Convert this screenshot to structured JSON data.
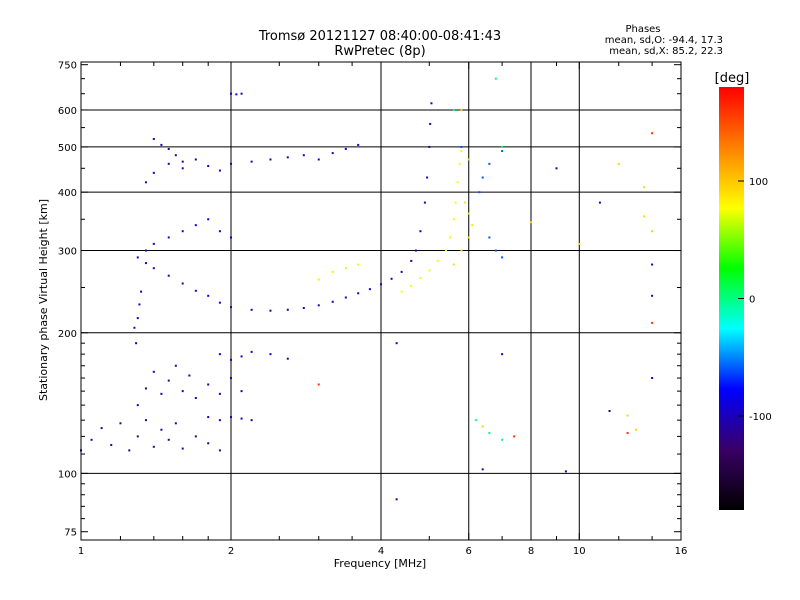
{
  "chart_data": {
    "type": "scatter",
    "title": "Tromsø 20121127 08:40:00-08:41:43",
    "subtitle": "RwPretec (8p)",
    "xlabel": "Frequency [MHz]",
    "ylabel": "Stationary phase Virtual Height [km]",
    "x_scale": "log",
    "y_scale": "log",
    "xlim": [
      1,
      16
    ],
    "ylim": [
      72,
      760
    ],
    "x_ticks": [
      1,
      2,
      4,
      6,
      8,
      10,
      16
    ],
    "x_tick_labels": [
      "1",
      "2",
      "4",
      "6",
      "8",
      "10",
      "16"
    ],
    "x_gridlines": [
      2,
      4,
      6,
      8,
      10
    ],
    "y_ticks": [
      75,
      100,
      200,
      300,
      400,
      500,
      600,
      750
    ],
    "y_tick_labels": [
      "75",
      "100",
      "200",
      "300",
      "400",
      "500",
      "600",
      "750"
    ],
    "y_gridlines": [
      100,
      200,
      300,
      400,
      500,
      600
    ],
    "grid": true,
    "legend": {
      "title": "Phases",
      "lines": [
        "mean, sd,O: -94.4, 17.3",
        "mean, sd,X:  85.2, 22.3"
      ],
      "placement": "top-right"
    },
    "colorbar": {
      "label": "[deg]",
      "range": [
        -180,
        180
      ],
      "ticks": [
        100,
        0,
        -100
      ],
      "tick_labels": [
        "100",
        "0",
        "-100"
      ],
      "stops": [
        "#000000",
        "#3a0066",
        "#0000ff",
        "#00ffff",
        "#00ff00",
        "#ffff00",
        "#ff8000",
        "#ff0000"
      ]
    },
    "traces": [
      {
        "phase": -110,
        "points": [
          [
            1.0,
            112
          ],
          [
            1.05,
            118
          ],
          [
            1.1,
            125
          ],
          [
            1.15,
            115
          ],
          [
            1.2,
            128
          ],
          [
            1.25,
            112
          ],
          [
            1.3,
            120
          ],
          [
            1.35,
            130
          ],
          [
            1.4,
            114
          ],
          [
            1.45,
            124
          ],
          [
            1.5,
            118
          ],
          [
            1.55,
            128
          ],
          [
            1.6,
            113
          ],
          [
            1.7,
            120
          ],
          [
            1.8,
            116
          ],
          [
            1.9,
            112
          ]
        ]
      },
      {
        "phase": -105,
        "points": [
          [
            1.3,
            140
          ],
          [
            1.35,
            152
          ],
          [
            1.4,
            165
          ],
          [
            1.45,
            148
          ],
          [
            1.5,
            158
          ],
          [
            1.55,
            170
          ],
          [
            1.6,
            150
          ],
          [
            1.65,
            162
          ],
          [
            1.7,
            145
          ],
          [
            1.8,
            155
          ],
          [
            1.9,
            148
          ],
          [
            2.0,
            160
          ],
          [
            2.1,
            150
          ]
        ]
      },
      {
        "phase": -100,
        "points": [
          [
            1.28,
            205
          ],
          [
            1.29,
            190
          ],
          [
            1.3,
            215
          ],
          [
            1.31,
            230
          ],
          [
            1.32,
            245
          ]
        ]
      },
      {
        "phase": -100,
        "points": [
          [
            1.3,
            290
          ],
          [
            1.35,
            282
          ],
          [
            1.4,
            275
          ],
          [
            1.5,
            265
          ],
          [
            1.6,
            255
          ],
          [
            1.7,
            246
          ],
          [
            1.8,
            240
          ],
          [
            1.9,
            232
          ],
          [
            2.0,
            227
          ],
          [
            2.2,
            224
          ],
          [
            2.4,
            223
          ],
          [
            2.6,
            224
          ],
          [
            2.8,
            226
          ],
          [
            3.0,
            229
          ],
          [
            3.2,
            233
          ],
          [
            3.4,
            238
          ],
          [
            3.6,
            243
          ],
          [
            3.8,
            248
          ],
          [
            4.0,
            254
          ],
          [
            4.2,
            261
          ],
          [
            4.4,
            270
          ],
          [
            4.6,
            285
          ],
          [
            4.7,
            300
          ],
          [
            4.8,
            330
          ],
          [
            4.9,
            380
          ],
          [
            4.95,
            430
          ],
          [
            5.0,
            500
          ],
          [
            5.02,
            560
          ],
          [
            5.05,
            620
          ]
        ]
      },
      {
        "phase": -90,
        "points": [
          [
            1.35,
            300
          ],
          [
            1.4,
            310
          ],
          [
            1.5,
            320
          ],
          [
            1.6,
            330
          ],
          [
            1.7,
            340
          ],
          [
            1.8,
            350
          ],
          [
            1.9,
            330
          ],
          [
            2.0,
            320
          ]
        ]
      },
      {
        "phase": -100,
        "points": [
          [
            1.35,
            420
          ],
          [
            1.4,
            440
          ],
          [
            1.5,
            460
          ],
          [
            1.6,
            450
          ],
          [
            1.7,
            470
          ],
          [
            1.8,
            455
          ],
          [
            1.9,
            445
          ],
          [
            2.0,
            460
          ],
          [
            2.2,
            465
          ],
          [
            2.4,
            470
          ],
          [
            2.6,
            475
          ],
          [
            2.8,
            480
          ],
          [
            3.0,
            470
          ],
          [
            3.2,
            485
          ],
          [
            3.4,
            495
          ],
          [
            3.6,
            505
          ]
        ]
      },
      {
        "phase": -105,
        "points": [
          [
            1.4,
            520
          ],
          [
            1.45,
            505
          ],
          [
            1.5,
            495
          ],
          [
            1.55,
            480
          ],
          [
            1.6,
            465
          ]
        ]
      },
      {
        "phase": -100,
        "points": [
          [
            2.0,
            650
          ],
          [
            2.05,
            648
          ],
          [
            2.1,
            650
          ]
        ]
      },
      {
        "phase": -95,
        "points": [
          [
            1.9,
            180
          ],
          [
            2.0,
            175
          ],
          [
            2.1,
            178
          ],
          [
            2.2,
            182
          ],
          [
            2.4,
            180
          ],
          [
            2.6,
            176
          ]
        ]
      },
      {
        "phase": -100,
        "points": [
          [
            1.8,
            132
          ],
          [
            1.9,
            130
          ],
          [
            2.0,
            132
          ],
          [
            2.1,
            131
          ],
          [
            2.2,
            130
          ]
        ]
      },
      {
        "phase": 80,
        "points": [
          [
            4.4,
            245
          ],
          [
            4.6,
            252
          ],
          [
            4.8,
            262
          ],
          [
            5.0,
            272
          ],
          [
            5.2,
            285
          ],
          [
            5.4,
            300
          ],
          [
            5.5,
            320
          ],
          [
            5.6,
            350
          ],
          [
            5.65,
            380
          ],
          [
            5.7,
            420
          ],
          [
            5.75,
            460
          ],
          [
            5.8,
            490
          ]
        ]
      },
      {
        "phase": 90,
        "points": [
          [
            5.6,
            280
          ],
          [
            5.8,
            300
          ],
          [
            6.0,
            320
          ],
          [
            6.1,
            340
          ],
          [
            6.0,
            360
          ],
          [
            5.9,
            380
          ]
        ]
      },
      {
        "phase": 70,
        "points": [
          [
            3.0,
            260
          ],
          [
            3.2,
            270
          ],
          [
            3.4,
            275
          ],
          [
            3.6,
            280
          ]
        ]
      },
      {
        "phase": -60,
        "points": [
          [
            5.8,
            600
          ],
          [
            5.8,
            500
          ],
          [
            6.6,
            460
          ],
          [
            7.0,
            490
          ],
          [
            6.4,
            430
          ],
          [
            6.3,
            400
          ],
          [
            6.6,
            320
          ],
          [
            6.8,
            300
          ],
          [
            7.0,
            290
          ]
        ]
      },
      {
        "phase": -110,
        "points": [
          [
            4.3,
            190
          ],
          [
            7.0,
            180
          ],
          [
            9.0,
            450
          ],
          [
            11.0,
            380
          ],
          [
            14.0,
            240
          ],
          [
            14.0,
            280
          ],
          [
            14.0,
            160
          ],
          [
            11.5,
            136
          ],
          [
            9.4,
            101
          ],
          [
            6.4,
            102
          ]
        ]
      },
      {
        "phase": 95,
        "points": [
          [
            5.8,
            600
          ],
          [
            6.0,
            470
          ],
          [
            12.0,
            460
          ],
          [
            8.0,
            345
          ],
          [
            10.0,
            310
          ],
          [
            13.5,
            410
          ],
          [
            14.0,
            330
          ],
          [
            13.5,
            355
          ],
          [
            12.5,
            133
          ],
          [
            13.0,
            124
          ],
          [
            6.4,
            126
          ]
        ]
      },
      {
        "phase": 160,
        "points": [
          [
            14.0,
            535
          ],
          [
            14.0,
            210
          ],
          [
            12.5,
            122
          ],
          [
            3.0,
            155
          ],
          [
            7.4,
            120
          ]
        ]
      },
      {
        "phase": 0,
        "points": [
          [
            5.6,
            600
          ],
          [
            6.8,
            700
          ],
          [
            7.0,
            500
          ],
          [
            6.6,
            122
          ],
          [
            7.0,
            118
          ],
          [
            6.2,
            130
          ]
        ]
      },
      {
        "phase": -120,
        "points": [
          [
            4.3,
            88
          ]
        ]
      }
    ]
  }
}
